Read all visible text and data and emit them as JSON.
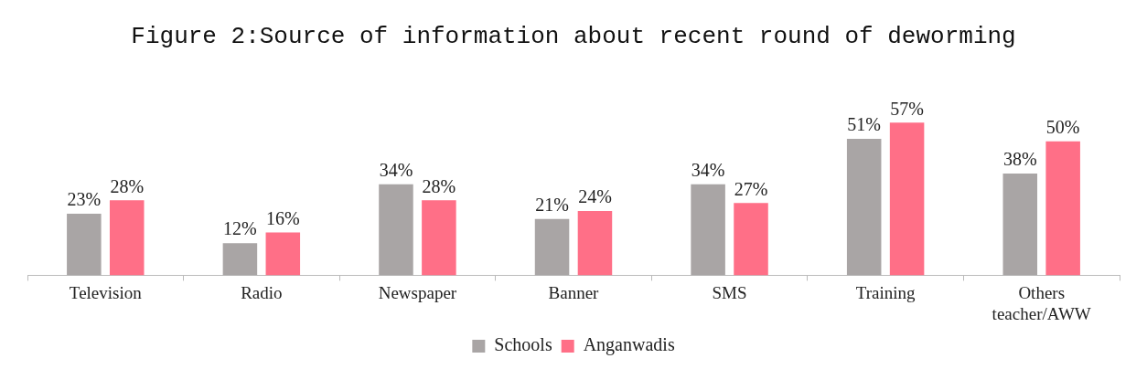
{
  "chart_data": {
    "type": "bar",
    "title": "Figure 2:Source of information about recent round of deworming",
    "categories": [
      "Television",
      "Radio",
      "Newspaper",
      "Banner",
      "SMS",
      "Training",
      "Others teacher/AWW"
    ],
    "series": [
      {
        "name": "Schools",
        "color": "#a9a5a5",
        "values": [
          23,
          12,
          34,
          21,
          34,
          51,
          38
        ],
        "value_labels": [
          "23%",
          "12%",
          "34%",
          "21%",
          "34%",
          "51%",
          "38%"
        ]
      },
      {
        "name": "Anganwadis",
        "color": "#ff6f87",
        "values": [
          28,
          16,
          28,
          24,
          27,
          57,
          50
        ],
        "value_labels": [
          "28%",
          "16%",
          "28%",
          "24%",
          "27%",
          "57%",
          "50%"
        ]
      }
    ],
    "grid": false,
    "legend": "bottom"
  }
}
